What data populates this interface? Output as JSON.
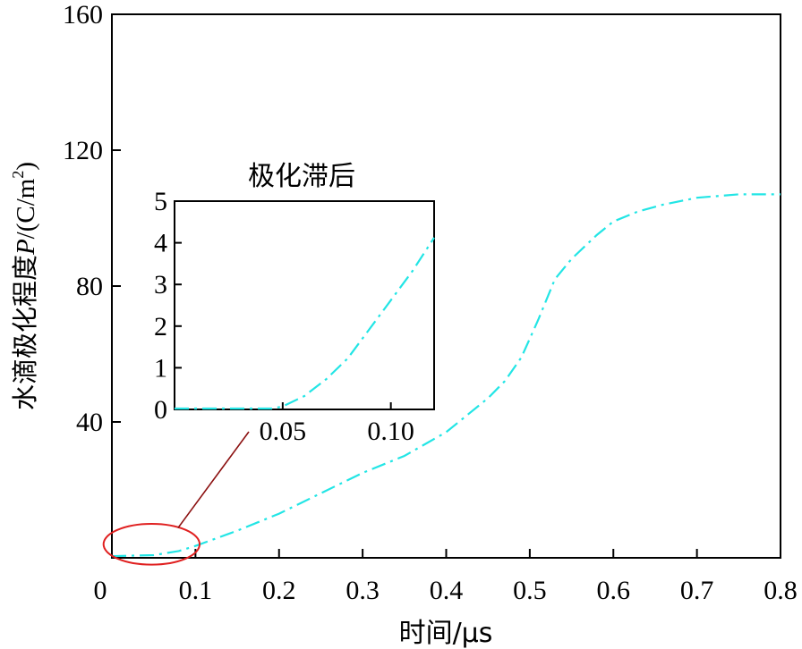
{
  "chart_data": {
    "main": {
      "type": "line",
      "xlabel": "时间/μs",
      "ylabel_prefix": "水滴极化程度",
      "ylabel_var": "P",
      "ylabel_unit_open": "/(C/m",
      "ylabel_unit_exp": "2",
      "ylabel_unit_close": ")",
      "xlim": [
        0,
        0.8
      ],
      "ylim": [
        0,
        160
      ],
      "xticks": [
        "0",
        "0.1",
        "0.2",
        "0.3",
        "0.4",
        "0.5",
        "0.6",
        "0.7",
        "0.8"
      ],
      "yticks": [
        "40",
        "80",
        "120",
        "160"
      ],
      "line_color": "#22e5e5",
      "series": [
        {
          "x": [
            0.0,
            0.05,
            0.08,
            0.1,
            0.15,
            0.2,
            0.25,
            0.3,
            0.35,
            0.4,
            0.45,
            0.47,
            0.49,
            0.51,
            0.53,
            0.55,
            0.58,
            0.6,
            0.63,
            0.66,
            0.7,
            0.75,
            0.8
          ],
          "y": [
            0.5,
            0.8,
            2,
            3.5,
            8,
            13,
            19,
            25,
            30,
            37,
            47,
            52,
            59,
            70,
            82,
            88,
            95,
            99,
            102,
            104,
            106,
            107,
            107
          ]
        }
      ],
      "annotation_ellipse": {
        "x_range": [
          -0.01,
          0.105
        ],
        "y_range": [
          -2,
          10
        ],
        "color": "#e02020"
      }
    },
    "inset": {
      "type": "line",
      "title": "极化滞后",
      "xlim": [
        0,
        0.12
      ],
      "ylim": [
        0,
        5
      ],
      "xticks": [
        "0.05",
        "0.10"
      ],
      "yticks": [
        "0",
        "1",
        "2",
        "3",
        "4",
        "5"
      ],
      "series": [
        {
          "x": [
            0.0,
            0.02,
            0.045,
            0.05,
            0.06,
            0.07,
            0.08,
            0.09,
            0.1,
            0.11,
            0.12
          ],
          "y": [
            0.0,
            0.0,
            0.0,
            0.05,
            0.3,
            0.7,
            1.2,
            1.9,
            2.6,
            3.3,
            4.1
          ]
        }
      ]
    },
    "connector_color": "#8b1010",
    "origin_label": "0"
  }
}
